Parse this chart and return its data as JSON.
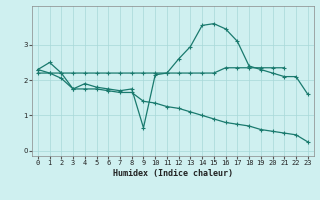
{
  "xlabel": "Humidex (Indice chaleur)",
  "xlim": [
    -0.5,
    23.5
  ],
  "ylim": [
    -0.15,
    4.1
  ],
  "yticks": [
    0,
    1,
    2,
    3
  ],
  "xticks": [
    0,
    1,
    2,
    3,
    4,
    5,
    6,
    7,
    8,
    9,
    10,
    11,
    12,
    13,
    14,
    15,
    16,
    17,
    18,
    19,
    20,
    21,
    22,
    23
  ],
  "bg_color": "#cff0f0",
  "grid_color": "#a8d8d8",
  "line_color": "#1a7a6e",
  "series": [
    {
      "x": [
        0,
        1,
        2,
        3,
        4,
        5,
        6,
        7,
        8,
        9,
        10,
        11,
        12,
        13,
        14,
        15,
        16,
        17,
        18,
        19,
        20,
        21,
        22,
        23
      ],
      "y": [
        2.3,
        2.5,
        2.2,
        1.75,
        1.9,
        1.8,
        1.75,
        1.7,
        1.75,
        0.65,
        2.15,
        2.2,
        2.6,
        2.95,
        3.55,
        3.6,
        3.45,
        3.1,
        2.4,
        2.3,
        2.2,
        2.1,
        2.1,
        1.6
      ]
    },
    {
      "x": [
        0,
        1,
        2,
        3,
        4,
        5,
        6,
        7,
        8,
        9,
        10,
        11,
        12,
        13,
        14,
        15,
        16,
        17,
        18,
        19,
        20,
        21
      ],
      "y": [
        2.2,
        2.2,
        2.2,
        2.2,
        2.2,
        2.2,
        2.2,
        2.2,
        2.2,
        2.2,
        2.2,
        2.2,
        2.2,
        2.2,
        2.2,
        2.2,
        2.35,
        2.35,
        2.35,
        2.35,
        2.35,
        2.35
      ]
    },
    {
      "x": [
        0,
        1,
        2,
        3,
        4,
        5,
        6,
        7,
        8,
        9,
        10,
        11,
        12,
        13,
        14,
        15,
        16,
        17,
        18,
        19,
        20,
        21,
        22,
        23
      ],
      "y": [
        2.3,
        2.2,
        2.05,
        1.75,
        1.75,
        1.75,
        1.7,
        1.65,
        1.65,
        1.4,
        1.35,
        1.25,
        1.2,
        1.1,
        1.0,
        0.9,
        0.8,
        0.75,
        0.7,
        0.6,
        0.55,
        0.5,
        0.45,
        0.25
      ]
    }
  ]
}
